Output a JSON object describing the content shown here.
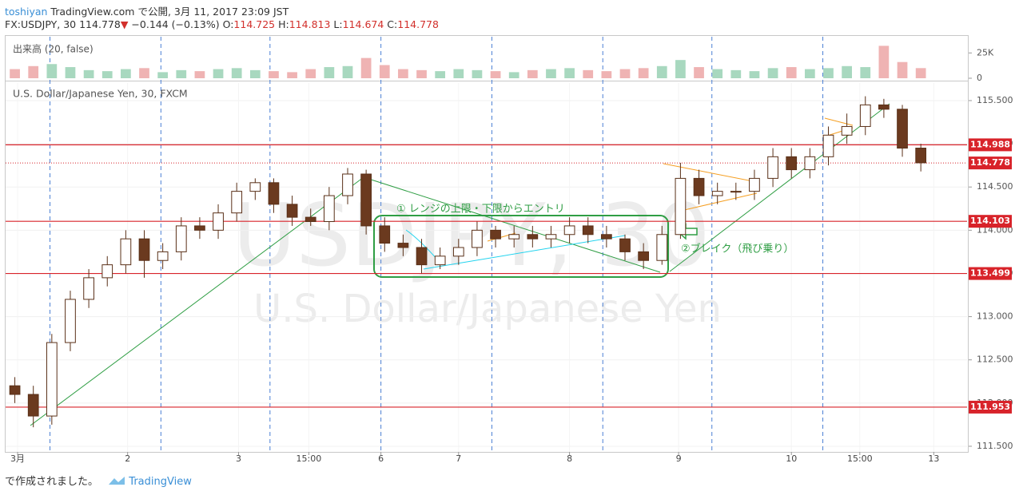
{
  "header": {
    "author": "toshiyan",
    "published": "TradingView.com で公開, 3月 11, 2017 23:09 JST"
  },
  "legend": {
    "symbol": "FX:USDJPY, 30",
    "last": 114.778,
    "arrow": "▼",
    "change": "−0.144 (−0.13%)",
    "o_label": "O:",
    "o": 114.725,
    "h_label": "H:",
    "h": 114.813,
    "l_label": "L:",
    "l": 114.674,
    "c_label": "C:",
    "c": 114.778
  },
  "chart_data": {
    "type": "candlestick",
    "title": "U.S. Dollar/Japanese Yen, 30, FXCM",
    "watermark": [
      "USDJPY, 30",
      "U.S. Dollar/Japanese Yen"
    ],
    "open": [
      112.2,
      112.1,
      111.85,
      112.7,
      113.2,
      113.45,
      113.6,
      113.9,
      113.65,
      113.75,
      114.05,
      114.0,
      114.2,
      114.45,
      114.55,
      114.3,
      114.15,
      114.1,
      114.4,
      114.65,
      114.05,
      113.85,
      113.8,
      113.6,
      113.7,
      113.8,
      114.0,
      113.9,
      113.95,
      113.9,
      113.95,
      114.05,
      113.95,
      113.9,
      113.75,
      113.65,
      113.95,
      114.6,
      114.4,
      114.45,
      114.45,
      114.6,
      114.85,
      114.7,
      114.85,
      115.1,
      115.2,
      115.45,
      115.4,
      114.95
    ],
    "high": [
      112.3,
      112.2,
      112.8,
      113.3,
      113.55,
      113.7,
      114.0,
      114.0,
      113.85,
      114.15,
      114.15,
      114.3,
      114.55,
      114.6,
      114.6,
      114.4,
      114.25,
      114.5,
      114.72,
      114.7,
      114.15,
      113.95,
      113.9,
      113.8,
      113.9,
      114.1,
      114.05,
      114.05,
      114.05,
      114.05,
      114.15,
      114.15,
      114.05,
      113.95,
      113.85,
      114.05,
      114.78,
      114.7,
      114.55,
      114.55,
      114.7,
      114.95,
      114.95,
      114.95,
      115.2,
      115.35,
      115.55,
      115.52,
      115.45,
      115.0
    ],
    "low": [
      112.0,
      111.72,
      111.75,
      112.6,
      113.1,
      113.35,
      113.5,
      113.45,
      113.55,
      113.65,
      113.9,
      113.9,
      114.1,
      114.35,
      114.2,
      114.05,
      114.05,
      114.0,
      114.3,
      113.95,
      113.75,
      113.7,
      113.5,
      113.55,
      113.6,
      113.7,
      113.8,
      113.8,
      113.8,
      113.8,
      113.85,
      113.85,
      113.8,
      113.65,
      113.55,
      113.6,
      113.9,
      114.3,
      114.3,
      114.35,
      114.35,
      114.5,
      114.6,
      114.6,
      114.75,
      115.0,
      115.1,
      115.3,
      114.85,
      114.68
    ],
    "close": [
      112.1,
      111.85,
      112.7,
      113.2,
      113.45,
      113.6,
      113.9,
      113.65,
      113.75,
      114.05,
      114.0,
      114.2,
      114.45,
      114.55,
      114.3,
      114.15,
      114.1,
      114.4,
      114.65,
      114.05,
      113.85,
      113.8,
      113.6,
      113.7,
      113.8,
      114.0,
      113.9,
      113.95,
      113.9,
      113.95,
      114.05,
      113.95,
      113.9,
      113.75,
      113.65,
      113.95,
      114.6,
      114.4,
      114.45,
      114.45,
      114.6,
      114.85,
      114.7,
      114.85,
      115.1,
      115.2,
      115.45,
      115.4,
      114.95,
      114.78
    ],
    "up_color": "#ffffff",
    "down_color": "#6b3a1f",
    "wick_color": "#5a3018",
    "xlim": [
      0,
      52
    ],
    "xticks": [
      {
        "value": 0.65,
        "label": "3月"
      },
      {
        "value": 6.6,
        "label": "2"
      },
      {
        "value": 12.6,
        "label": "3"
      },
      {
        "value": 16.4,
        "label": "15:00"
      },
      {
        "value": 20.3,
        "label": "6"
      },
      {
        "value": 24.5,
        "label": "7"
      },
      {
        "value": 30.5,
        "label": "8"
      },
      {
        "value": 36.4,
        "label": "9"
      },
      {
        "value": 42.5,
        "label": "10"
      },
      {
        "value": 46.2,
        "label": "15:00"
      },
      {
        "value": 50.2,
        "label": "13"
      }
    ],
    "ylim": [
      111.435,
      115.703
    ],
    "yticks": [
      {
        "value": 111.5,
        "label": "111.500"
      },
      {
        "value": 112,
        "label": "112.000"
      },
      {
        "value": 112.5,
        "label": "112.500"
      },
      {
        "value": 113,
        "label": "113.000"
      },
      {
        "value": 113.5,
        "label": "113.500"
      },
      {
        "value": 114,
        "label": "114.000"
      },
      {
        "value": 114.5,
        "label": "114.500"
      },
      {
        "value": 115,
        "label": "115.000"
      },
      {
        "value": 115.5,
        "label": "115.500"
      }
    ],
    "grid": true,
    "session_lines": [
      2.4,
      8.4,
      14.3,
      20.3,
      26.3,
      32.3,
      38.2,
      44.2
    ],
    "price_levels": [
      114.988,
      114.103,
      113.499,
      111.953
    ],
    "level_color": "#d8232a",
    "last_price": 114.778,
    "volume": {
      "title": "出来高 (20, false)",
      "values": [
        9000,
        12000,
        14000,
        11000,
        8000,
        7000,
        9000,
        10000,
        6000,
        8000,
        7000,
        9000,
        10000,
        8000,
        7000,
        6000,
        9000,
        11000,
        12000,
        20000,
        13000,
        9000,
        8000,
        7000,
        9000,
        8000,
        7000,
        6000,
        8000,
        9000,
        10000,
        8000,
        7000,
        9000,
        10000,
        12000,
        18000,
        11000,
        9000,
        8000,
        7000,
        10000,
        11000,
        9000,
        10000,
        12000,
        11000,
        32000,
        16000,
        10000
      ],
      "ylim": [
        0,
        41000
      ],
      "yticks": [
        {
          "value": 25000,
          "label": "25K"
        },
        0
      ],
      "up_color": "#a8d8bf",
      "down_color": "#efb3b3"
    },
    "annotations": [
      "① レンジの上限・下限からエントリ",
      "②ブレイク（飛び乗り）"
    ]
  },
  "footer": {
    "text": "で作成されました。",
    "brand": "TradingView"
  }
}
